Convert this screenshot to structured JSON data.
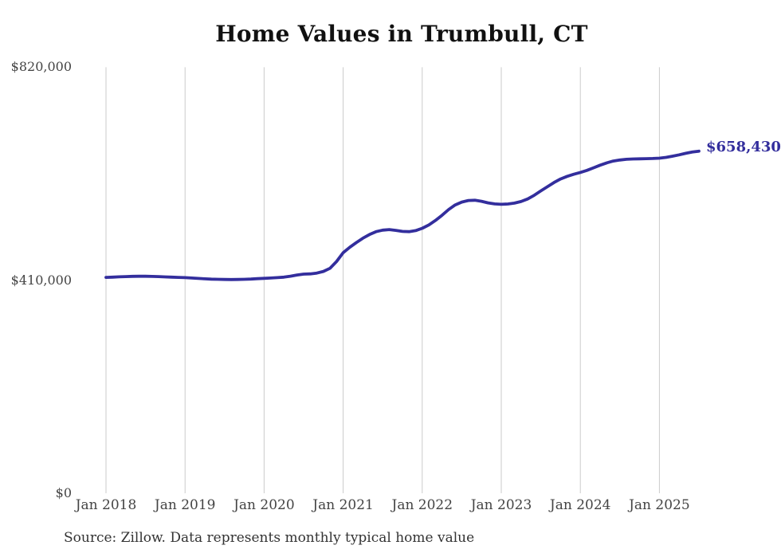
{
  "title": "Home Values in Trumbull, CT",
  "source": "Source: Zillow. Data represents monthly typical home value",
  "colors": {
    "line": "#332E9D",
    "end_label": "#332E9D",
    "gridline": "#CBCBCB",
    "axis_label": "#444444",
    "title": "#111111",
    "source": "#333333",
    "background": "#FFFFFF"
  },
  "chart_data": {
    "type": "line",
    "title": "Home Values in Trumbull, CT",
    "xlabel": "",
    "ylabel": "",
    "ylim": [
      0,
      820000
    ],
    "grid": "vertical-only",
    "legend": "none",
    "frequency": "monthly",
    "x_start": "2018-01",
    "x_end": "2025-07",
    "x_tick_labels": [
      "Jan 2018",
      "Jan 2019",
      "Jan 2020",
      "Jan 2021",
      "Jan 2022",
      "Jan 2023",
      "Jan 2024",
      "Jan 2025"
    ],
    "y_ticks": [
      {
        "label": "$820,000",
        "value": 820000
      },
      {
        "label": "$410,000",
        "value": 410000
      },
      {
        "label": "$0",
        "value": 0
      }
    ],
    "end_label": "$658,430",
    "final_value": 658430,
    "series": [
      {
        "name": "Typical home value",
        "start": "2018-01",
        "values": [
          415500,
          416000,
          416600,
          417100,
          417500,
          417700,
          417700,
          417400,
          417000,
          416500,
          416000,
          415500,
          415000,
          414300,
          413500,
          412800,
          412200,
          411800,
          411500,
          411400,
          411500,
          411800,
          412300,
          413000,
          413700,
          414300,
          415000,
          416000,
          417800,
          420200,
          421800,
          422300,
          423800,
          427000,
          433000,
          446000,
          463000,
          473500,
          482500,
          491000,
          498000,
          503500,
          506500,
          507500,
          506000,
          504000,
          503500,
          505500,
          510000,
          516500,
          525000,
          535000,
          546000,
          555000,
          560500,
          563500,
          564000,
          562000,
          559000,
          557000,
          556200,
          556800,
          558500,
          561500,
          566500,
          573500,
          582000,
          590000,
          598000,
          605000,
          610000,
          614000,
          617500,
          621500,
          626500,
          631500,
          636000,
          639500,
          641500,
          642800,
          643500,
          643800,
          644000,
          644300,
          645000,
          646500,
          648800,
          651500,
          654300,
          656800,
          658430
        ]
      }
    ]
  }
}
